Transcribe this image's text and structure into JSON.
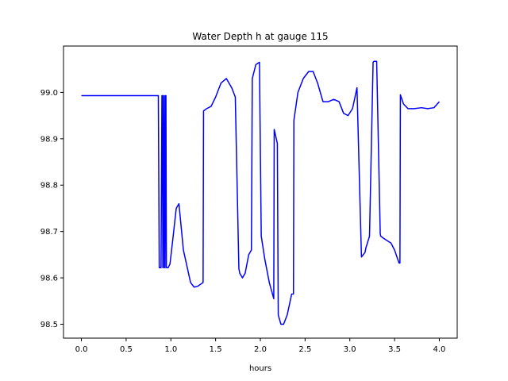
{
  "chart_data": {
    "type": "line",
    "title": "Water Depth h at gauge 115",
    "xlabel": "hours",
    "ylabel": "",
    "xlim": [
      -0.2,
      4.2
    ],
    "ylim": [
      98.47,
      99.1
    ],
    "x_ticks": [
      0.0,
      0.5,
      1.0,
      1.5,
      2.0,
      2.5,
      3.0,
      3.5,
      4.0
    ],
    "x_tick_labels": [
      "0.0",
      "0.5",
      "1.0",
      "1.5",
      "2.0",
      "2.5",
      "3.0",
      "3.5",
      "4.0"
    ],
    "y_ticks": [
      98.5,
      98.6,
      98.7,
      98.8,
      98.9,
      99.0
    ],
    "y_tick_labels": [
      "98.5",
      "98.6",
      "98.7",
      "98.8",
      "98.9",
      "99.0"
    ],
    "grid": false,
    "series": [
      {
        "color": "#0000ff",
        "x": [
          0.0,
          0.3,
          0.6,
          0.86,
          0.87,
          0.89,
          0.9,
          0.905,
          0.91,
          0.915,
          0.92,
          0.925,
          0.93,
          0.935,
          0.94,
          0.945,
          0.95,
          0.97,
          0.99,
          1.02,
          1.06,
          1.09,
          1.11,
          1.14,
          1.18,
          1.22,
          1.26,
          1.3,
          1.36,
          1.365,
          1.4,
          1.45,
          1.5,
          1.56,
          1.62,
          1.68,
          1.72,
          1.76,
          1.77,
          1.8,
          1.83,
          1.87,
          1.9,
          1.91,
          1.95,
          1.99,
          2.01,
          2.05,
          2.1,
          2.15,
          2.155,
          2.19,
          2.2,
          2.23,
          2.26,
          2.3,
          2.35,
          2.37,
          2.375,
          2.42,
          2.48,
          2.54,
          2.59,
          2.64,
          2.7,
          2.76,
          2.82,
          2.88,
          2.93,
          2.98,
          3.03,
          3.08,
          3.13,
          3.17,
          3.18,
          3.22,
          3.26,
          3.27,
          3.3,
          3.34,
          3.345,
          3.38,
          3.42,
          3.46,
          3.5,
          3.55,
          3.56,
          3.565,
          3.6,
          3.65,
          3.72,
          3.8,
          3.87,
          3.94,
          4.0
        ],
        "y": [
          98.993,
          98.993,
          98.993,
          98.993,
          98.622,
          98.622,
          98.993,
          98.993,
          98.622,
          98.622,
          98.993,
          98.993,
          98.622,
          98.622,
          98.993,
          98.993,
          98.622,
          98.622,
          98.63,
          98.68,
          98.75,
          98.76,
          98.72,
          98.66,
          98.625,
          98.59,
          98.58,
          98.582,
          98.59,
          98.96,
          98.965,
          98.97,
          98.99,
          99.02,
          99.03,
          99.01,
          98.99,
          98.62,
          98.61,
          98.6,
          98.61,
          98.65,
          98.66,
          99.03,
          99.06,
          99.065,
          98.69,
          98.64,
          98.59,
          98.555,
          98.92,
          98.89,
          98.52,
          98.5,
          98.5,
          98.52,
          98.565,
          98.565,
          98.94,
          99.0,
          99.03,
          99.045,
          99.045,
          99.02,
          98.98,
          98.98,
          98.985,
          98.98,
          98.955,
          98.95,
          98.965,
          99.01,
          98.645,
          98.655,
          98.665,
          98.69,
          99.065,
          99.067,
          99.067,
          98.695,
          98.69,
          98.685,
          98.68,
          98.675,
          98.66,
          98.632,
          98.632,
          98.995,
          98.975,
          98.965,
          98.965,
          98.967,
          98.965,
          98.967,
          98.98
        ]
      }
    ]
  }
}
